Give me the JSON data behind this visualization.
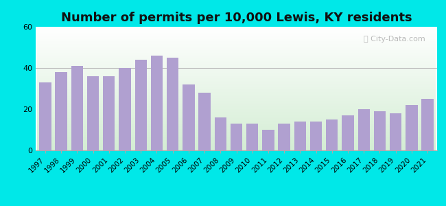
{
  "title": "Number of permits per 10,000 Lewis, KY residents",
  "years": [
    "1997",
    "1998",
    "1999",
    "2000",
    "2001",
    "2002",
    "2003",
    "2004",
    "2005",
    "2006",
    "2007",
    "2008",
    "2009",
    "2010",
    "2011",
    "2012",
    "2013",
    "2014",
    "2015",
    "2016",
    "2017",
    "2018",
    "2019",
    "2020",
    "2021"
  ],
  "values": [
    33,
    38,
    41,
    36,
    36,
    40,
    44,
    46,
    45,
    32,
    28,
    16,
    13,
    13,
    10,
    13,
    14,
    14,
    15,
    17,
    20,
    19,
    18,
    22,
    25
  ],
  "bar_color": "#b0a0d0",
  "background_outer": "#00e8e8",
  "ylim": [
    0,
    60
  ],
  "yticks": [
    0,
    20,
    40,
    60
  ],
  "title_fontsize": 13,
  "tick_fontsize": 7.5,
  "watermark": "City-Data.com"
}
